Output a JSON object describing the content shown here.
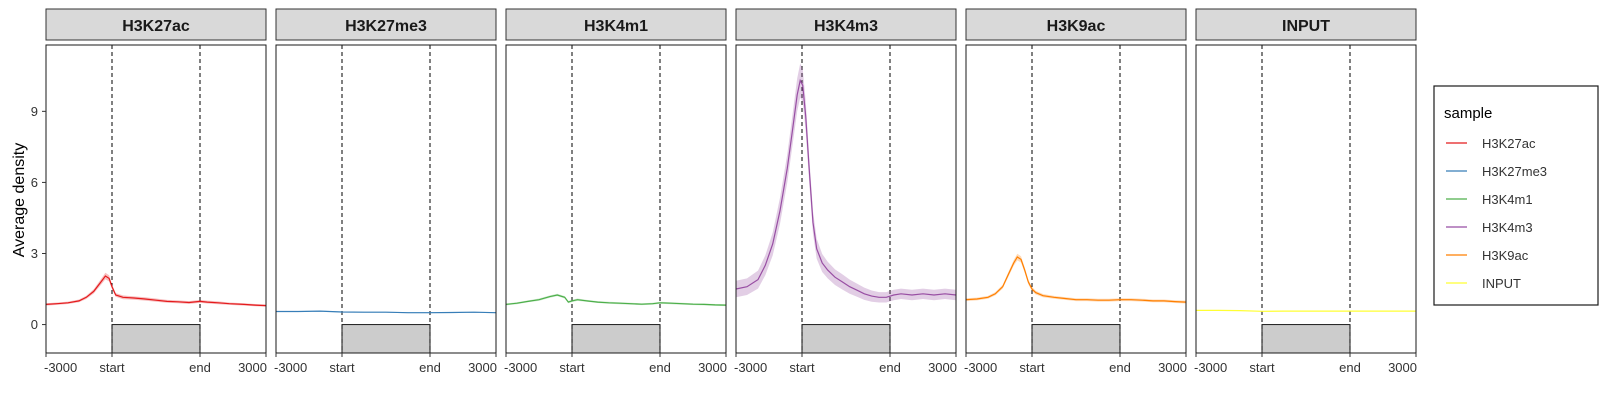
{
  "chart_data": {
    "type": "line",
    "title": "",
    "ylabel": "Average density",
    "xlabel": "",
    "ylim": [
      -1.2,
      11.8
    ],
    "yticks": [
      0,
      3,
      6,
      9
    ],
    "xlim": [
      -3000,
      3000
    ],
    "xtick_labels": [
      "-3000",
      "start",
      "end",
      "3000"
    ],
    "xtick_positions": [
      -3000,
      -1200,
      1200,
      3000
    ],
    "region_marker": {
      "start": -1200,
      "end": 1200,
      "value": 0
    },
    "panels": [
      "H3K27ac",
      "H3K27me3",
      "H3K4m1",
      "H3K4m3",
      "H3K9ac",
      "INPUT"
    ],
    "legend": {
      "title": "sample",
      "placement": "right",
      "items": [
        {
          "name": "H3K27ac",
          "color": "#E41A1C"
        },
        {
          "name": "H3K27me3",
          "color": "#377EB8"
        },
        {
          "name": "H3K4m1",
          "color": "#4DAF4A"
        },
        {
          "name": "H3K4m3",
          "color": "#984EA3"
        },
        {
          "name": "H3K9ac",
          "color": "#FF7F00"
        },
        {
          "name": "INPUT",
          "color": "#FFFF33"
        }
      ]
    },
    "series": [
      {
        "name": "H3K27ac",
        "color": "#E41A1C",
        "x": [
          -3000,
          -2700,
          -2400,
          -2100,
          -1900,
          -1700,
          -1500,
          -1380,
          -1280,
          -1200,
          -1100,
          -900,
          -600,
          -300,
          0,
          300,
          600,
          900,
          1200,
          1400,
          1700,
          2000,
          2400,
          2700,
          3000
        ],
        "y": [
          0.85,
          0.88,
          0.92,
          1.0,
          1.15,
          1.4,
          1.8,
          2.05,
          1.95,
          1.6,
          1.25,
          1.15,
          1.12,
          1.08,
          1.03,
          0.98,
          0.96,
          0.93,
          0.98,
          0.95,
          0.92,
          0.88,
          0.85,
          0.82,
          0.8
        ],
        "band": [
          0.05,
          0.05,
          0.05,
          0.06,
          0.07,
          0.09,
          0.12,
          0.14,
          0.13,
          0.11,
          0.08,
          0.08,
          0.07,
          0.07,
          0.07,
          0.06,
          0.06,
          0.06,
          0.06,
          0.06,
          0.06,
          0.05,
          0.05,
          0.05,
          0.05
        ]
      },
      {
        "name": "H3K27me3",
        "color": "#377EB8",
        "x": [
          -3000,
          -2400,
          -1800,
          -1200,
          -600,
          0,
          600,
          1200,
          1800,
          2400,
          3000
        ],
        "y": [
          0.55,
          0.55,
          0.57,
          0.53,
          0.52,
          0.52,
          0.5,
          0.5,
          0.51,
          0.52,
          0.5
        ],
        "band": [
          0.02,
          0.02,
          0.02,
          0.02,
          0.02,
          0.02,
          0.02,
          0.02,
          0.02,
          0.02,
          0.02
        ]
      },
      {
        "name": "H3K4m1",
        "color": "#4DAF4A",
        "x": [
          -3000,
          -2700,
          -2400,
          -2100,
          -1800,
          -1600,
          -1400,
          -1300,
          -1200,
          -1050,
          -800,
          -500,
          -200,
          100,
          400,
          700,
          1000,
          1200,
          1500,
          1800,
          2100,
          2400,
          2700,
          3000
        ],
        "y": [
          0.85,
          0.9,
          0.98,
          1.05,
          1.18,
          1.25,
          1.15,
          0.95,
          1.0,
          1.05,
          1.0,
          0.95,
          0.92,
          0.9,
          0.88,
          0.86,
          0.88,
          0.92,
          0.9,
          0.88,
          0.86,
          0.85,
          0.83,
          0.82
        ],
        "band": [
          0.04,
          0.04,
          0.04,
          0.05,
          0.05,
          0.05,
          0.05,
          0.05,
          0.05,
          0.05,
          0.04,
          0.04,
          0.04,
          0.04,
          0.04,
          0.04,
          0.04,
          0.04,
          0.04,
          0.04,
          0.04,
          0.04,
          0.04,
          0.04
        ]
      },
      {
        "name": "H3K4m3",
        "color": "#984EA3",
        "x": [
          -3000,
          -2700,
          -2400,
          -2200,
          -2000,
          -1800,
          -1600,
          -1450,
          -1330,
          -1250,
          -1180,
          -1100,
          -1000,
          -900,
          -800,
          -650,
          -500,
          -300,
          -100,
          100,
          300,
          500,
          700,
          900,
          1100,
          1300,
          1500,
          1800,
          2100,
          2400,
          2700,
          3000
        ],
        "y": [
          1.5,
          1.6,
          1.9,
          2.5,
          3.4,
          4.8,
          6.6,
          8.3,
          9.7,
          10.3,
          10.1,
          8.8,
          6.5,
          4.3,
          3.2,
          2.6,
          2.3,
          2.0,
          1.8,
          1.6,
          1.45,
          1.3,
          1.2,
          1.15,
          1.15,
          1.25,
          1.3,
          1.25,
          1.3,
          1.25,
          1.3,
          1.25
        ],
        "band": [
          0.35,
          0.35,
          0.38,
          0.42,
          0.48,
          0.55,
          0.6,
          0.65,
          0.7,
          0.72,
          0.7,
          0.65,
          0.55,
          0.48,
          0.42,
          0.38,
          0.35,
          0.33,
          0.32,
          0.3,
          0.28,
          0.26,
          0.24,
          0.22,
          0.22,
          0.22,
          0.22,
          0.22,
          0.22,
          0.22,
          0.22,
          0.22
        ]
      },
      {
        "name": "H3K9ac",
        "color": "#FF7F00",
        "x": [
          -3000,
          -2700,
          -2400,
          -2200,
          -2000,
          -1850,
          -1700,
          -1600,
          -1500,
          -1400,
          -1300,
          -1200,
          -1100,
          -900,
          -600,
          -300,
          0,
          300,
          600,
          900,
          1200,
          1500,
          1800,
          2100,
          2400,
          2700,
          3000
        ],
        "y": [
          1.05,
          1.08,
          1.15,
          1.3,
          1.6,
          2.1,
          2.6,
          2.85,
          2.75,
          2.3,
          1.8,
          1.5,
          1.35,
          1.22,
          1.15,
          1.1,
          1.05,
          1.05,
          1.03,
          1.03,
          1.05,
          1.05,
          1.03,
          1.0,
          1.0,
          0.97,
          0.95
        ],
        "band": [
          0.06,
          0.06,
          0.06,
          0.07,
          0.08,
          0.1,
          0.12,
          0.14,
          0.13,
          0.12,
          0.1,
          0.09,
          0.08,
          0.07,
          0.06,
          0.06,
          0.06,
          0.06,
          0.06,
          0.06,
          0.06,
          0.06,
          0.06,
          0.06,
          0.06,
          0.06,
          0.06
        ]
      },
      {
        "name": "INPUT",
        "color": "#FFFF33",
        "x": [
          -3000,
          -2400,
          -1800,
          -1200,
          -600,
          0,
          600,
          1200,
          1800,
          2400,
          3000
        ],
        "y": [
          0.6,
          0.6,
          0.59,
          0.56,
          0.57,
          0.57,
          0.57,
          0.57,
          0.57,
          0.57,
          0.57
        ],
        "band": [
          0.01,
          0.01,
          0.01,
          0.01,
          0.01,
          0.01,
          0.01,
          0.01,
          0.01,
          0.01,
          0.01
        ]
      }
    ]
  }
}
